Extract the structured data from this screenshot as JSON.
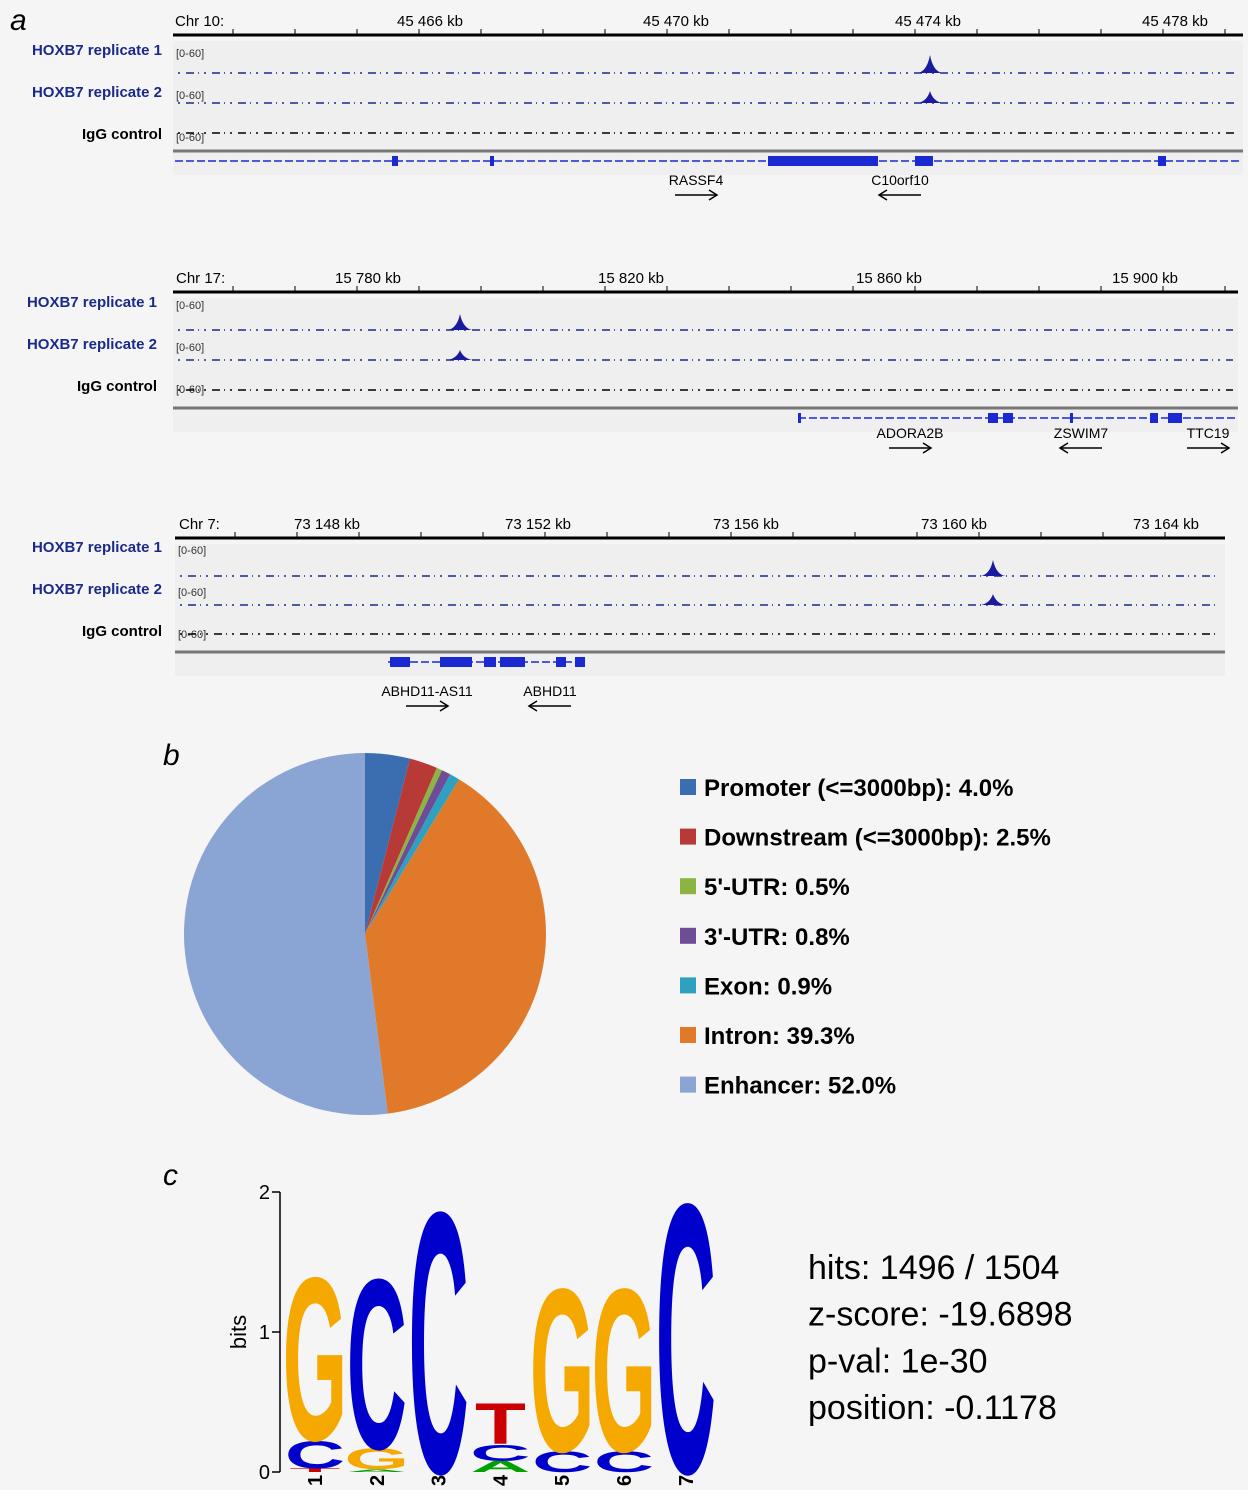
{
  "panel_labels": [
    "a",
    "b",
    "c"
  ],
  "browser": [
    {
      "chrom": "Chr 10:",
      "ticks": [
        "45 466 kb",
        "45 470 kb",
        "45 474 kb",
        "45 478 kb"
      ],
      "tracks": [
        {
          "name": "HOXB7 replicate 1",
          "range": "[0-60]"
        },
        {
          "name": "HOXB7 replicate 2",
          "range": "[0-60]"
        },
        {
          "name": "IgG control",
          "range": "[0-60]"
        }
      ],
      "genes": [
        "RASSF4",
        "C10orf10"
      ]
    },
    {
      "chrom": "Chr 17:",
      "ticks": [
        "15 780 kb",
        "15 820 kb",
        "15 860 kb",
        "15 900 kb"
      ],
      "tracks": [
        {
          "name": "HOXB7 replicate 1",
          "range": "[0-60]"
        },
        {
          "name": "HOXB7 replicate 2",
          "range": "[0-60]"
        },
        {
          "name": "IgG control",
          "range": "[0-60]"
        }
      ],
      "genes": [
        "ADORA2B",
        "ZSWIM7",
        "TTC19"
      ]
    },
    {
      "chrom": "Chr 7:",
      "ticks": [
        "73 148 kb",
        "73 152 kb",
        "73 156 kb",
        "73 160 kb",
        "73 164 kb"
      ],
      "tracks": [
        {
          "name": "HOXB7 replicate 1",
          "range": "[0-60]"
        },
        {
          "name": "HOXB7 replicate 2",
          "range": "[0-60]"
        },
        {
          "name": "IgG control",
          "range": "[0-60]"
        }
      ],
      "genes": [
        "ABHD11-AS11",
        "ABHD11"
      ]
    }
  ],
  "chart_data": [
    {
      "type": "pie",
      "categories": [
        "Promoter (<=3000bp):",
        "Downstream (<=3000bp):",
        "5'-UTR:",
        "3'-UTR:",
        "Exon:",
        "Intron:",
        "Enhancer:"
      ],
      "values": [
        4.0,
        2.5,
        0.5,
        0.8,
        0.9,
        39.3,
        52.0
      ],
      "value_labels": [
        "4.0%",
        "2.5%",
        "0.5%",
        "0.8%",
        "0.9%",
        "39.3%",
        "52.0%"
      ],
      "colors": [
        "#3a6eb0",
        "#b83a37",
        "#8cb443",
        "#6e4c96",
        "#2fa0c0",
        "#e07a2a",
        "#8aa4d4"
      ]
    },
    {
      "type": "logo",
      "ylabel": "bits",
      "ylim": [
        0,
        2
      ],
      "yticks": [
        0,
        1,
        2
      ],
      "categories": [
        "1",
        "2",
        "3",
        "4",
        "5",
        "6",
        "7"
      ],
      "letter_colors": {
        "A": "#00a000",
        "C": "#0000cc",
        "G": "#f5a800",
        "T": "#cc0000"
      },
      "stacks": [
        [
          {
            "letter": "T",
            "value": 0.03
          },
          {
            "letter": "C",
            "value": 0.2
          },
          {
            "letter": "G",
            "value": 1.2
          }
        ],
        [
          {
            "letter": "A",
            "value": 0.02
          },
          {
            "letter": "G",
            "value": 0.15
          },
          {
            "letter": "C",
            "value": 1.25
          }
        ],
        [
          {
            "letter": "C",
            "value": 1.92
          }
        ],
        [
          {
            "letter": "A",
            "value": 0.08
          },
          {
            "letter": "C",
            "value": 0.12
          },
          {
            "letter": "T",
            "value": 0.3
          }
        ],
        [
          {
            "letter": "C",
            "value": 0.15
          },
          {
            "letter": "G",
            "value": 1.2
          }
        ],
        [
          {
            "letter": "C",
            "value": 0.15
          },
          {
            "letter": "G",
            "value": 1.2
          }
        ],
        [
          {
            "letter": "C",
            "value": 1.98
          }
        ]
      ]
    }
  ],
  "motif_stats": [
    "hits: 1496 / 1504",
    "z-score: -19.6898",
    "p-val: 1e-30",
    "position: -0.1178"
  ]
}
